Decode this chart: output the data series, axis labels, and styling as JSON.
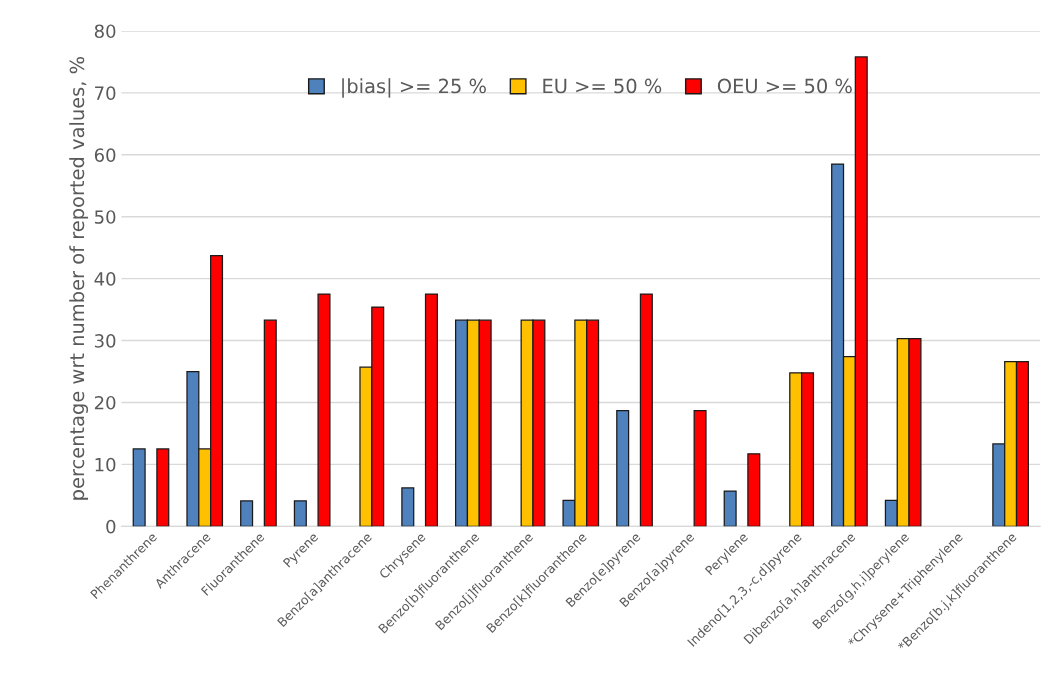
{
  "chart_data": {
    "type": "bar",
    "ylabel": "percentage wrt number of reported values, %",
    "categories": [
      "Phenanthrene",
      "Anthracene",
      "Fluoranthene",
      "Pyrene",
      "Benzo[a]anthracene",
      "Chrysene",
      "Benzo[b]fluoranthene",
      "Benzo[j]fluoranthene",
      "Benzo[k]fluoranthene",
      "Benzo[e]pyrene",
      "Benzo[a]pyrene",
      "Perylene",
      "Indeno[1,2,3,-c,d]pyrene",
      "Dibenzo[a,h]anthracene",
      "Benzo[g,h,i]perylene",
      "*Chrysene+Triphenylene",
      "*Benzo[b.j,k]fluoranthene"
    ],
    "series": [
      {
        "name": "|bias| >= 25 %",
        "color": "#4f81bd",
        "values": [
          12.5,
          25,
          4.1,
          4.1,
          null,
          6.2,
          33.3,
          null,
          4.2,
          18.7,
          null,
          5.7,
          null,
          58.5,
          4.2,
          null,
          13.3
        ]
      },
      {
        "name": "EU >= 50 %",
        "color": "#ffc000",
        "values": [
          null,
          12.5,
          null,
          null,
          25.7,
          null,
          33.3,
          33.3,
          33.3,
          null,
          null,
          null,
          24.8,
          27.4,
          30.3,
          null,
          26.6
        ]
      },
      {
        "name": "OEU >= 50 %",
        "color": "#ff0000",
        "values": [
          12.5,
          43.7,
          33.3,
          37.5,
          35.4,
          37.5,
          33.3,
          33.3,
          33.3,
          37.5,
          18.7,
          11.7,
          24.8,
          75.8,
          30.3,
          null,
          26.6
        ]
      }
    ],
    "ylim": [
      0,
      80
    ],
    "yticks": [
      0,
      10,
      20,
      30,
      40,
      50,
      60,
      70,
      80
    ],
    "grid": "y",
    "legend": "top"
  }
}
